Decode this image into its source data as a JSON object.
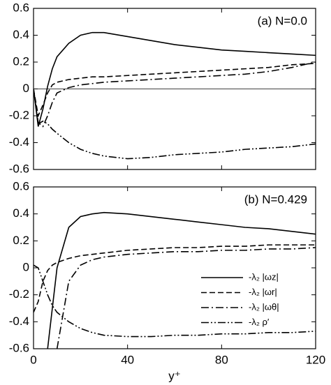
{
  "chart_data": [
    {
      "type": "line",
      "annotation": "(a) N=0.0",
      "x": [
        0,
        2,
        4,
        6,
        8,
        10,
        15,
        20,
        25,
        30,
        40,
        50,
        60,
        70,
        80,
        90,
        100,
        110,
        120
      ],
      "xlim": [
        0,
        120
      ],
      "xticks": [
        0,
        40,
        80,
        120
      ],
      "xtick_labels": false,
      "ylim": [
        -0.6,
        0.6
      ],
      "yticks": [
        0.6,
        0.4,
        0.2,
        0,
        -0.2,
        -0.4,
        -0.6
      ],
      "zero_line": true,
      "series": [
        {
          "color": "#000000",
          "dash": "solid",
          "values": [
            0,
            -0.28,
            -0.15,
            0.02,
            0.15,
            0.24,
            0.34,
            0.4,
            0.42,
            0.42,
            0.39,
            0.36,
            0.33,
            0.31,
            0.29,
            0.28,
            0.27,
            0.26,
            0.25
          ]
        },
        {
          "color": "#000000",
          "dash": "dashed",
          "values": [
            0,
            -0.2,
            -0.12,
            -0.03,
            0.03,
            0.05,
            0.07,
            0.08,
            0.09,
            0.09,
            0.1,
            0.11,
            0.12,
            0.13,
            0.14,
            0.15,
            0.16,
            0.18,
            0.19
          ]
        },
        {
          "color": "#000000",
          "dash": "dashdot",
          "values": [
            0,
            -0.25,
            -0.28,
            -0.2,
            -0.1,
            -0.03,
            0.01,
            0.03,
            0.04,
            0.05,
            0.06,
            0.07,
            0.08,
            0.09,
            0.1,
            0.11,
            0.13,
            0.16,
            0.2
          ]
        },
        {
          "color": "#000000",
          "dash": "dashdotdot",
          "values": [
            0,
            -0.26,
            -0.24,
            -0.26,
            -0.3,
            -0.33,
            -0.4,
            -0.45,
            -0.48,
            -0.5,
            -0.52,
            -0.51,
            -0.49,
            -0.48,
            -0.47,
            -0.45,
            -0.44,
            -0.43,
            -0.41
          ]
        }
      ]
    },
    {
      "type": "line",
      "annotation": "(b) N=0.429",
      "xlabel": "y⁺",
      "x": [
        0,
        2,
        4,
        6,
        8,
        10,
        15,
        20,
        25,
        30,
        40,
        50,
        60,
        70,
        80,
        90,
        100,
        110,
        120
      ],
      "xlim": [
        0,
        120
      ],
      "xticks": [
        0,
        40,
        80,
        120
      ],
      "xtick_labels": true,
      "ylim": [
        -0.6,
        0.6
      ],
      "yticks": [
        0.6,
        0.4,
        0.2,
        0,
        -0.2,
        -0.4,
        -0.6
      ],
      "zero_line": false,
      "legend": "lower right",
      "series": [
        {
          "name": "-λ₂ |ωz|",
          "color": "#000000",
          "dash": "solid",
          "values": [
            null,
            null,
            null,
            -0.6,
            -0.3,
            0,
            0.3,
            0.38,
            0.4,
            0.41,
            0.4,
            0.38,
            0.36,
            0.34,
            0.32,
            0.3,
            0.29,
            0.27,
            0.25
          ]
        },
        {
          "name": "-λ₂ |ωr|",
          "color": "#000000",
          "dash": "dashed",
          "values": [
            -0.33,
            -0.25,
            -0.1,
            -0.02,
            0.02,
            0.04,
            0.07,
            0.09,
            0.1,
            0.11,
            0.13,
            0.14,
            0.15,
            0.15,
            0.16,
            0.16,
            0.17,
            0.17,
            0.17
          ]
        },
        {
          "name": "-λ₂ |ωθ|",
          "color": "#000000",
          "dash": "dashdot",
          "values": [
            null,
            null,
            null,
            null,
            null,
            -0.6,
            -0.1,
            0.02,
            0.06,
            0.08,
            0.1,
            0.11,
            0.12,
            0.12,
            0.13,
            0.13,
            0.14,
            0.14,
            0.15
          ]
        },
        {
          "name": "-λ₂ ρ′",
          "color": "#000000",
          "dash": "dashdotdot",
          "values": [
            0.02,
            0,
            -0.1,
            -0.2,
            -0.28,
            -0.33,
            -0.4,
            -0.45,
            -0.48,
            -0.5,
            -0.51,
            -0.51,
            -0.5,
            -0.5,
            -0.49,
            -0.49,
            -0.48,
            -0.48,
            -0.47
          ]
        }
      ]
    }
  ]
}
